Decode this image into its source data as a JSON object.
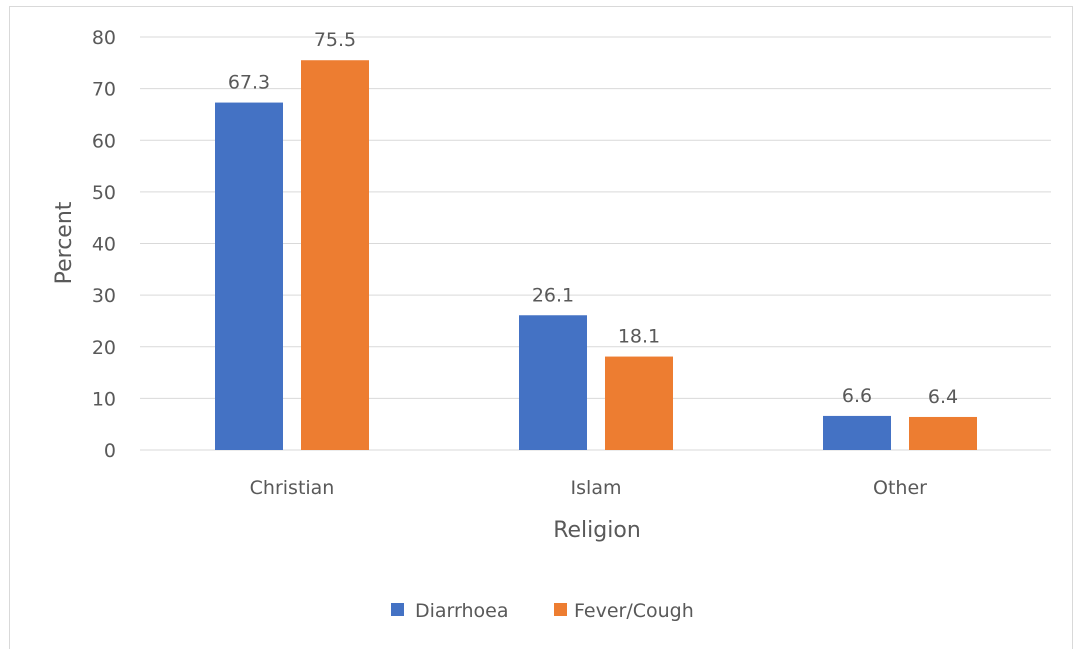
{
  "chart_data": {
    "type": "bar",
    "xlabel": "Religion",
    "ylabel": "Percent",
    "ylim": [
      0,
      80
    ],
    "yticks": [
      0,
      10,
      20,
      30,
      40,
      50,
      60,
      70,
      80
    ],
    "categories": [
      "Christian",
      "Islam",
      "Other"
    ],
    "series": [
      {
        "name": "Diarrhoea",
        "values": [
          67.3,
          26.1,
          6.6
        ],
        "labels": [
          "67.3",
          "26.1",
          "6.6"
        ],
        "color": "#4472c4"
      },
      {
        "name": "Fever/Cough",
        "values": [
          75.5,
          18.1,
          6.4
        ],
        "labels": [
          "75.5",
          "18.1",
          "6.4"
        ],
        "color": "#ed7d31"
      }
    ],
    "grid": true,
    "gridline_color": "#d9d9d9",
    "legend_placement": "bottom"
  }
}
